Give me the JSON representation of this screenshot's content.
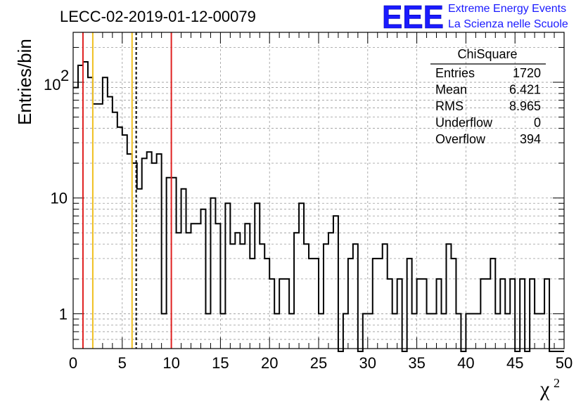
{
  "header": {
    "run_title": "LECC-02-2019-01-12-00079",
    "logo_text": "EEE",
    "logo_line1": "Extreme Energy Events",
    "logo_line2": "La Scienza nelle Scuole"
  },
  "stats": {
    "title": "ChiSquare",
    "rows": [
      {
        "label": "Entries",
        "value": "1720"
      },
      {
        "label": "Mean",
        "value": "6.421"
      },
      {
        "label": "RMS",
        "value": "8.965"
      },
      {
        "label": "Underflow",
        "value": "0"
      },
      {
        "label": "Overflow",
        "value": "394"
      }
    ]
  },
  "chart_data": {
    "type": "histogram",
    "xlabel": "χ",
    "xlabel_sup": "2",
    "ylabel": "Entries/bin",
    "x_range": [
      0,
      50
    ],
    "y_range": [
      0.5,
      270
    ],
    "y_scale": "log",
    "grid": true,
    "bin_width": 0.5,
    "x_ticks": [
      {
        "v": 0,
        "label": "0"
      },
      {
        "v": 5,
        "label": "5"
      },
      {
        "v": 10,
        "label": "10"
      },
      {
        "v": 15,
        "label": "15"
      },
      {
        "v": 20,
        "label": "20"
      },
      {
        "v": 25,
        "label": "25"
      },
      {
        "v": 30,
        "label": "30"
      },
      {
        "v": 35,
        "label": "35"
      },
      {
        "v": 40,
        "label": "40"
      },
      {
        "v": 45,
        "label": "45"
      },
      {
        "v": 50,
        "label": "50"
      }
    ],
    "y_ticks": [
      {
        "v": 1,
        "label": "1"
      },
      {
        "v": 10,
        "label": "10"
      },
      {
        "v": 100,
        "label": "10",
        "sup": "2"
      }
    ],
    "bins": [
      {
        "x": 0.0,
        "y": 90
      },
      {
        "x": 0.5,
        "y": 140
      },
      {
        "x": 1.0,
        "y": 150
      },
      {
        "x": 1.5,
        "y": 110
      },
      {
        "x": 2.0,
        "y": 65
      },
      {
        "x": 2.5,
        "y": 65
      },
      {
        "x": 3.0,
        "y": 110
      },
      {
        "x": 3.5,
        "y": 75
      },
      {
        "x": 4.0,
        "y": 55
      },
      {
        "x": 4.5,
        "y": 41
      },
      {
        "x": 5.0,
        "y": 35
      },
      {
        "x": 5.5,
        "y": 24
      },
      {
        "x": 6.0,
        "y": 20
      },
      {
        "x": 6.5,
        "y": 12
      },
      {
        "x": 7.0,
        "y": 22
      },
      {
        "x": 7.5,
        "y": 25
      },
      {
        "x": 8.0,
        "y": 20
      },
      {
        "x": 8.5,
        "y": 24
      },
      {
        "x": 9.0,
        "y": 1
      },
      {
        "x": 9.5,
        "y": 15
      },
      {
        "x": 10.0,
        "y": 15
      },
      {
        "x": 10.5,
        "y": 5
      },
      {
        "x": 11.0,
        "y": 12
      },
      {
        "x": 11.5,
        "y": 5
      },
      {
        "x": 12.0,
        "y": 6
      },
      {
        "x": 12.5,
        "y": 6
      },
      {
        "x": 13.0,
        "y": 8
      },
      {
        "x": 13.5,
        "y": 1
      },
      {
        "x": 14.0,
        "y": 10
      },
      {
        "x": 14.5,
        "y": 6
      },
      {
        "x": 15.0,
        "y": 1
      },
      {
        "x": 15.5,
        "y": 9
      },
      {
        "x": 16.0,
        "y": 4
      },
      {
        "x": 16.5,
        "y": 5
      },
      {
        "x": 17.0,
        "y": 4
      },
      {
        "x": 17.5,
        "y": 6
      },
      {
        "x": 18.0,
        "y": 3
      },
      {
        "x": 18.5,
        "y": 9
      },
      {
        "x": 19.0,
        "y": 4
      },
      {
        "x": 19.5,
        "y": 3
      },
      {
        "x": 20.0,
        "y": 2
      },
      {
        "x": 20.5,
        "y": 1
      },
      {
        "x": 21.0,
        "y": 2
      },
      {
        "x": 21.5,
        "y": 2
      },
      {
        "x": 22.0,
        "y": 1
      },
      {
        "x": 22.5,
        "y": 5
      },
      {
        "x": 23.0,
        "y": 9
      },
      {
        "x": 23.5,
        "y": 4
      },
      {
        "x": 24.0,
        "y": 3
      },
      {
        "x": 24.5,
        "y": 3
      },
      {
        "x": 25.0,
        "y": 1
      },
      {
        "x": 25.5,
        "y": 4
      },
      {
        "x": 26.0,
        "y": 5
      },
      {
        "x": 26.5,
        "y": 7
      },
      {
        "x": 27.0,
        "y": 0
      },
      {
        "x": 27.5,
        "y": 1
      },
      {
        "x": 28.0,
        "y": 3
      },
      {
        "x": 28.5,
        "y": 4
      },
      {
        "x": 29.0,
        "y": 0
      },
      {
        "x": 29.5,
        "y": 1
      },
      {
        "x": 30.0,
        "y": 1
      },
      {
        "x": 30.5,
        "y": 3
      },
      {
        "x": 31.0,
        "y": 3
      },
      {
        "x": 31.5,
        "y": 4
      },
      {
        "x": 32.0,
        "y": 2
      },
      {
        "x": 32.5,
        "y": 1
      },
      {
        "x": 33.0,
        "y": 2
      },
      {
        "x": 33.5,
        "y": 0
      },
      {
        "x": 34.0,
        "y": 3
      },
      {
        "x": 34.5,
        "y": 1
      },
      {
        "x": 35.0,
        "y": 2
      },
      {
        "x": 35.5,
        "y": 2
      },
      {
        "x": 36.0,
        "y": 1
      },
      {
        "x": 36.5,
        "y": 1
      },
      {
        "x": 37.0,
        "y": 2
      },
      {
        "x": 37.5,
        "y": 1
      },
      {
        "x": 38.0,
        "y": 4
      },
      {
        "x": 38.5,
        "y": 3
      },
      {
        "x": 39.0,
        "y": 1
      },
      {
        "x": 39.5,
        "y": 0
      },
      {
        "x": 40.0,
        "y": 1
      },
      {
        "x": 40.5,
        "y": 1
      },
      {
        "x": 41.0,
        "y": 1
      },
      {
        "x": 41.5,
        "y": 2
      },
      {
        "x": 42.0,
        "y": 2
      },
      {
        "x": 42.5,
        "y": 3
      },
      {
        "x": 43.0,
        "y": 1
      },
      {
        "x": 43.5,
        "y": 2
      },
      {
        "x": 44.0,
        "y": 1
      },
      {
        "x": 44.5,
        "y": 2
      },
      {
        "x": 45.0,
        "y": 0
      },
      {
        "x": 45.5,
        "y": 2
      },
      {
        "x": 46.0,
        "y": 0
      },
      {
        "x": 46.5,
        "y": 2
      },
      {
        "x": 47.0,
        "y": 1
      },
      {
        "x": 47.5,
        "y": 1
      },
      {
        "x": 48.0,
        "y": 2
      },
      {
        "x": 48.5,
        "y": 0
      },
      {
        "x": 49.0,
        "y": 0
      },
      {
        "x": 49.5,
        "y": 0
      }
    ],
    "vertical_lines": [
      {
        "x": 1.0,
        "color": "#e02020",
        "style": "solid"
      },
      {
        "x": 2.0,
        "color": "#f0c020",
        "style": "solid"
      },
      {
        "x": 6.0,
        "color": "#f0c020",
        "style": "solid"
      },
      {
        "x": 6.421,
        "color": "#000000",
        "style": "dashed"
      },
      {
        "x": 10.0,
        "color": "#e02020",
        "style": "solid"
      }
    ]
  }
}
